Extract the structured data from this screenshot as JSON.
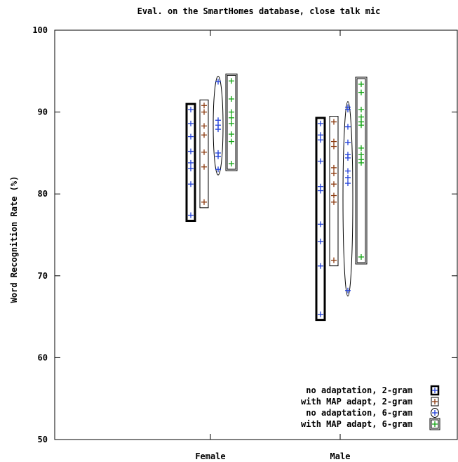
{
  "chart_data": {
    "type": "scatter",
    "title": "Eval. on the SmartHomes database, close talk mic",
    "xlabel": "",
    "ylabel": "Word Recognition Rate (%)",
    "ylim": [
      50,
      100
    ],
    "yticks": [
      50,
      60,
      70,
      80,
      90,
      100
    ],
    "categories": [
      "Female",
      "Male"
    ],
    "grid": false,
    "legend_position": "bottom-right",
    "series": [
      {
        "name": "no adaptation, 2-gram",
        "color": "#1f3fd9",
        "box": "thick",
        "values": [
          [
            77.4,
            81.2,
            83.1,
            83.8,
            85.2,
            87.0,
            88.6,
            90.3
          ],
          [
            65.3,
            71.2,
            74.2,
            76.3,
            80.4,
            80.9,
            84.0,
            86.6,
            87.2,
            88.6
          ]
        ]
      },
      {
        "name": "with MAP adapt, 2-gram",
        "color": "#8b3a0f",
        "box": "thin",
        "values": [
          [
            79.0,
            83.3,
            85.1,
            87.2,
            88.3,
            90.0,
            90.8
          ],
          [
            71.9,
            79.0,
            79.8,
            81.2,
            82.5,
            83.2,
            85.8,
            86.4,
            88.8
          ]
        ]
      },
      {
        "name": "no adaptation, 6-gram",
        "color": "#1f3fd9",
        "box": "ellipse",
        "values": [
          [
            83.0,
            84.6,
            85.0,
            87.9,
            88.4,
            89.0,
            93.7
          ],
          [
            68.2,
            81.3,
            82.0,
            82.8,
            84.4,
            84.8,
            86.3,
            88.2,
            90.3,
            90.6
          ]
        ]
      },
      {
        "name": "with MAP adapt, 6-gram",
        "color": "#12a312",
        "box": "double",
        "values": [
          [
            83.7,
            86.4,
            87.3,
            88.6,
            89.3,
            90.0,
            91.6,
            93.8
          ],
          [
            72.3,
            83.8,
            84.2,
            84.8,
            85.6,
            88.4,
            88.8,
            89.4,
            90.3,
            92.4,
            93.4
          ]
        ]
      }
    ]
  }
}
